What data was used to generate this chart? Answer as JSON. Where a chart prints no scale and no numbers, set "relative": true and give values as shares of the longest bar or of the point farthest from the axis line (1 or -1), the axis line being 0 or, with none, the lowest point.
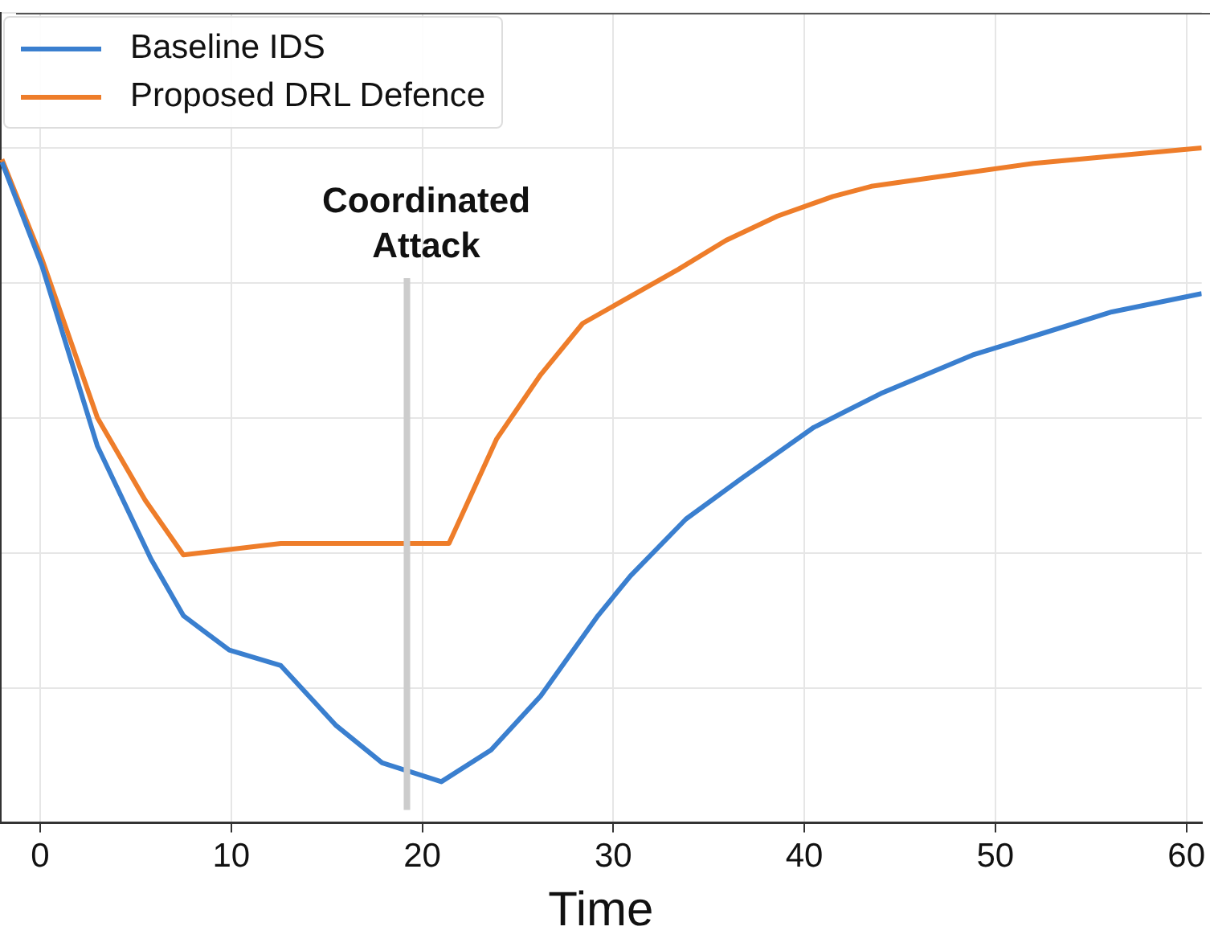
{
  "chart_data": {
    "type": "line",
    "relative": true,
    "xlabel": "Time",
    "xlim": [
      -2.1,
      60.8
    ],
    "xticks": [
      0,
      10,
      20,
      30,
      40,
      50,
      60
    ],
    "series": [
      {
        "name": "Baseline IDS",
        "color": "#3a7fcf",
        "x": [
          -2.0,
          0.1,
          3.0,
          5.8,
          7.5,
          9.9,
          12.6,
          15.5,
          17.9,
          21.0,
          23.6,
          26.2,
          29.2,
          30.9,
          33.8,
          36.7,
          40.5,
          44.0,
          48.8,
          56.1,
          60.8
        ],
        "values": [
          0.979,
          0.825,
          0.558,
          0.391,
          0.307,
          0.256,
          0.233,
          0.144,
          0.089,
          0.061,
          0.108,
          0.188,
          0.307,
          0.366,
          0.45,
          0.51,
          0.586,
          0.636,
          0.693,
          0.757,
          0.784
        ]
      },
      {
        "name": "Proposed DRL Defence",
        "color": "#ee7d2a",
        "x": [
          -2.0,
          0.1,
          3.0,
          5.5,
          7.5,
          12.6,
          21.4,
          23.9,
          26.2,
          28.4,
          33.4,
          35.9,
          38.6,
          41.5,
          43.5,
          47.2,
          52.0,
          57.7,
          60.8
        ],
        "values": [
          0.983,
          0.835,
          0.6,
          0.478,
          0.397,
          0.414,
          0.414,
          0.569,
          0.664,
          0.74,
          0.82,
          0.863,
          0.899,
          0.928,
          0.943,
          0.958,
          0.977,
          0.992,
          1
        ]
      }
    ],
    "ref_lines": [
      {
        "axis": "x",
        "value": 19.2,
        "label": "Coordinated Attack",
        "color": "#cccccc"
      }
    ],
    "grid": true,
    "legend": "top left",
    "line_style": "solid",
    "marker": "none"
  }
}
